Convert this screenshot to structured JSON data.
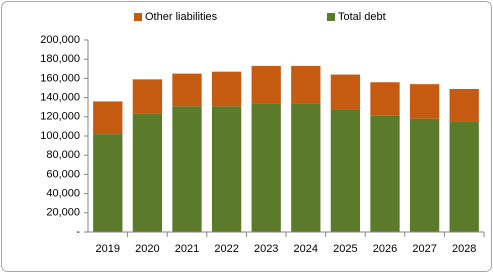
{
  "chart_data": {
    "type": "stacked-bar",
    "categories": [
      "2019",
      "2020",
      "2021",
      "2022",
      "2023",
      "2024",
      "2025",
      "2026",
      "2027",
      "2028"
    ],
    "series": [
      {
        "name": "Total debt",
        "color": "#5b7a2a",
        "values": [
          102000,
          123000,
          131000,
          131000,
          134000,
          134000,
          128000,
          121000,
          118000,
          115000
        ]
      },
      {
        "name": "Other liabilities",
        "color": "#c55a11",
        "values": [
          34000,
          36000,
          34000,
          36000,
          39000,
          39000,
          36000,
          35000,
          36000,
          34000
        ]
      }
    ],
    "ylim": [
      0,
      200000
    ],
    "yticks": [
      {
        "value": 0,
        "label": "-"
      },
      {
        "value": 20000,
        "label": "20,000"
      },
      {
        "value": 40000,
        "label": "40,000"
      },
      {
        "value": 60000,
        "label": "60,000"
      },
      {
        "value": 80000,
        "label": "80,000"
      },
      {
        "value": 100000,
        "label": "100,000"
      },
      {
        "value": 120000,
        "label": "120,000"
      },
      {
        "value": 140000,
        "label": "140,000"
      },
      {
        "value": 160000,
        "label": "160,000"
      },
      {
        "value": 180000,
        "label": "180,000"
      },
      {
        "value": 200000,
        "label": "200,000"
      }
    ],
    "legend": "top"
  }
}
